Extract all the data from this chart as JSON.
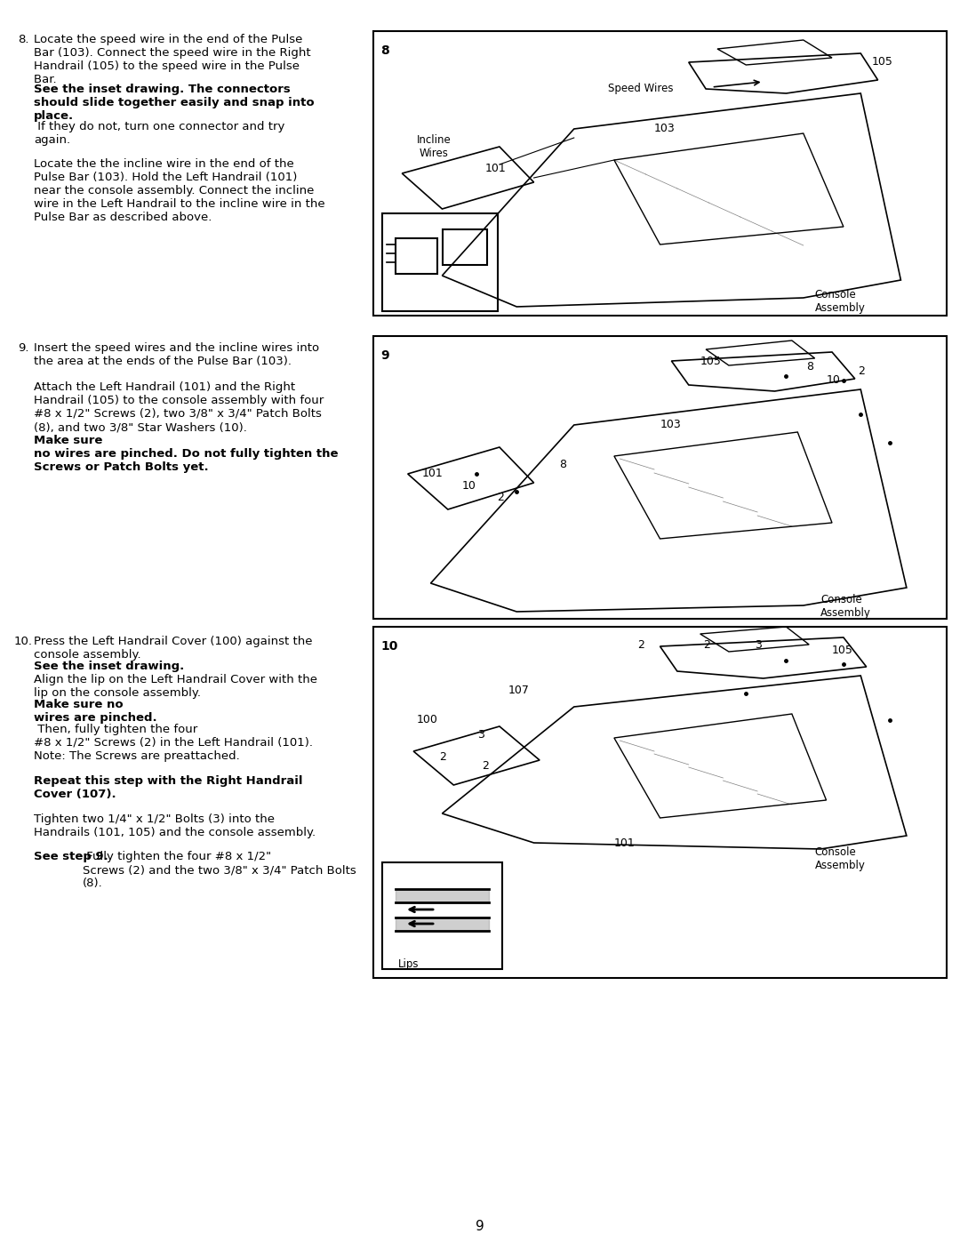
{
  "page_number": "9",
  "background_color": "#ffffff",
  "text_color": "#000000",
  "step8": {
    "number": "8.",
    "paragraph1_normal": "Locate the speed wire in the end of the Pulse\nBar (103). Connect the speed wire in the Right\nHandrail (105) to the speed wire in the Pulse\nBar. ",
    "paragraph1_bold": "See the inset drawing. The connectors\nshould slide together easily and snap into\nplace.",
    "paragraph1_end": " If they do not, turn one connector and try\nagain.",
    "paragraph2": "Locate the the incline wire in the end of the\nPulse Bar (103). Hold the Left Handrail (101)\nnear the console assembly. Connect the incline\nwire in the Left Handrail to the incline wire in the\nPulse Bar as described above."
  },
  "step9": {
    "number": "9.",
    "paragraph1": "Insert the speed wires and the incline wires into\nthe area at the ends of the Pulse Bar (103).",
    "paragraph2_normal": "Attach the Left Handrail (101) and the Right\nHandrail (105) to the console assembly with four\n#8 x 1/2\" Screws (2), two 3/8\" x 3/4\" Patch Bolts\n(8), and two 3/8\" Star Washers (10). ",
    "paragraph2_bold": "Make sure\nno wires are pinched. Do not fully tighten the\nScrews or Patch Bolts yet."
  },
  "step10": {
    "number": "10.",
    "paragraph1_normal": "Press the Left Handrail Cover (100) against the\nconsole assembly. ",
    "paragraph1_bold": "See the inset drawing.",
    "paragraph1_cont": "Align the lip on the Left Handrail Cover with the\nlip on the console assembly. ",
    "paragraph1_bold2": "Make sure no\nwires are pinched.",
    "paragraph1_end": " Then, fully tighten the four\n#8 x 1/2\" Screws (2) in the Left Handrail (101).\nNote: The Screws are preattached.",
    "paragraph2_bold": "Repeat this step with the Right Handrail\nCover (107).",
    "paragraph3": "Tighten two 1/4\" x 1/2\" Bolts (3) into the\nHandrails (101, 105) and the console assembly.",
    "paragraph4_normal": "See step 9.",
    "paragraph4_end": " Fully tighten the four #8 x 1/2\"\nScrews (2) and the two 3/8\" x 3/4\" Patch Bolts\n(8)."
  },
  "diagram8_labels": {
    "step_num": "8",
    "speed_wires": "Speed Wires",
    "incline_wires": "Incline\nWires",
    "num_105": "105",
    "num_103": "103",
    "num_101": "101",
    "console": "Console\nAssembly"
  },
  "diagram9_labels": {
    "step_num": "9",
    "num_105": "105",
    "num_8a": "8",
    "num_10a": "10",
    "num_2a": "2",
    "num_103": "103",
    "num_8b": "8",
    "num_101": "101",
    "num_10b": "10",
    "num_2b": "2",
    "console": "Console\nAssembly"
  },
  "diagram10_labels": {
    "step_num": "10",
    "num_2a": "2",
    "num_2b": "2",
    "num_3a": "3",
    "num_105": "105",
    "num_107": "107",
    "num_100": "100",
    "num_3b": "3",
    "num_2c": "2",
    "num_2d": "2",
    "num_101": "101",
    "console": "Console\nAssembly",
    "lips": "Lips"
  }
}
